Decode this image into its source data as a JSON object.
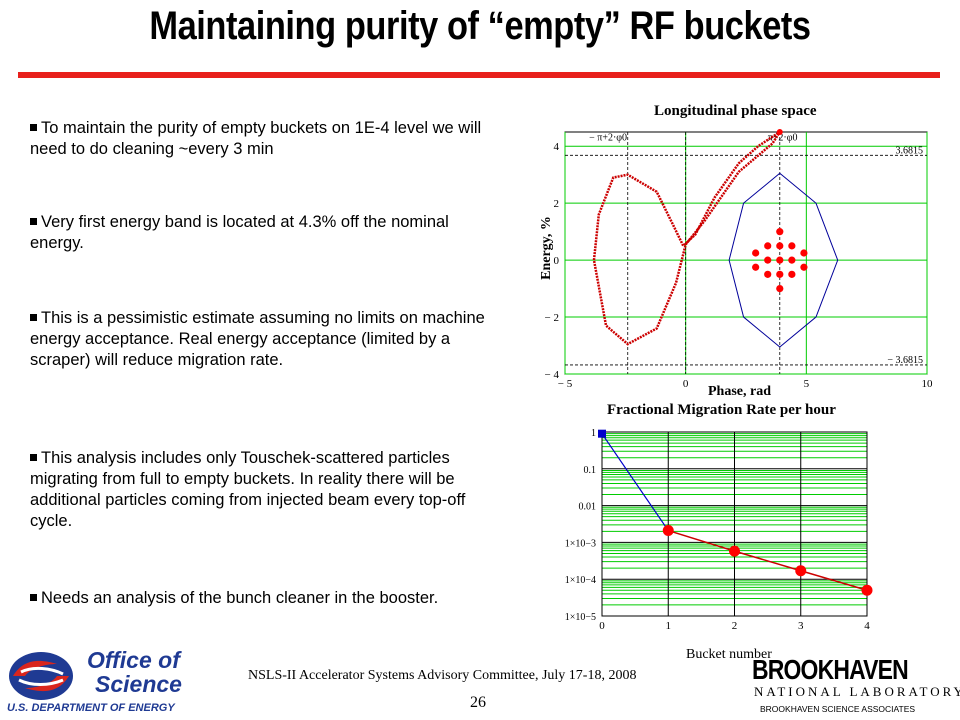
{
  "slide": {
    "title": "Maintaining purity of “empty” RF buckets",
    "bullets": [
      "To maintain the purity of empty buckets on 1E-4 level we will need to do cleaning ~every 3 min",
      "Very first energy band is located at 4.3% off the nominal energy.",
      "This is a pessimistic estimate assuming no limits on machine energy acceptance. Real energy acceptance (limited by a scraper) will reduce migration rate.",
      "This analysis includes only Touschek-scattered particles migrating from full to empty buckets. In reality there will be additional particles coming from injected beam every top-off cycle.",
      "Needs an analysis of the bunch cleaner in the booster."
    ],
    "footer_text": "NSLS-II Accelerator Systems Advisory Committee,  July 17-18, 2008",
    "page_number": "26",
    "logo_left": {
      "line1": "Office of",
      "line2": "Science",
      "line3": "U.S. DEPARTMENT OF ENERGY"
    },
    "logo_right": {
      "line1": "BROOKHAVEN",
      "line2": "NATIONAL LABORATORY",
      "line3": "BROOKHAVEN SCIENCE ASSOCIATES"
    }
  },
  "colors": {
    "title_rule": "#e8201c",
    "grid": "#00cc00",
    "separatrix": "#cc0000",
    "bucket": "#00009a",
    "migration_line": "#cc0000",
    "first_point": "#0000cc",
    "logo_blue": "#1f3a93",
    "logo_red": "#d9251d"
  },
  "chart_data": [
    {
      "type": "scatter",
      "title": "Longitudinal phase space",
      "xlabel": "Phase, rad",
      "ylabel": "Energy, %",
      "xlim": [
        -5,
        10
      ],
      "ylim": [
        -4,
        4.5
      ],
      "x_ticks": [
        "-5",
        "0",
        "5",
        "10"
      ],
      "y_ticks": [
        "-4",
        "-2",
        "0",
        "2",
        "4"
      ],
      "grid": true,
      "annotations": [
        "− π+2·φ0",
        "π+2·φ0",
        "3.6815",
        "− 3.6815"
      ],
      "reference_lines": {
        "phase": [
          -2.4,
          0,
          3.9
        ],
        "energy": [
          3.6815,
          -3.6815
        ]
      },
      "series": [
        {
          "points": [
            [
              -3.8,
              0
            ],
            [
              -3.6,
              1.6
            ],
            [
              -3,
              2.9
            ],
            [
              -2.4,
              3.0
            ],
            [
              -1.2,
              2.4
            ],
            [
              -0.5,
              1.2
            ],
            [
              -0.1,
              0.5
            ],
            [
              0.4,
              0.9
            ],
            [
              1.2,
              2.2
            ],
            [
              2.2,
              3.4
            ],
            [
              3,
              4.0
            ],
            [
              3.9,
              4.5
            ],
            [
              3.6,
              4.1
            ],
            [
              2.2,
              3.1
            ],
            [
              0.8,
              1.4
            ],
            [
              0.0,
              0.55
            ],
            [
              -0.4,
              -0.8
            ],
            [
              -1.2,
              -2.4
            ],
            [
              -2.4,
              -2.95
            ],
            [
              -3.3,
              -2.3
            ],
            [
              -3.8,
              0
            ]
          ]
        },
        {
          "points": [
            [
              1.8,
              0
            ],
            [
              2.4,
              -2
            ],
            [
              3.9,
              -3.05
            ],
            [
              5.4,
              -2
            ],
            [
              6.3,
              0
            ],
            [
              5.4,
              2
            ],
            [
              3.9,
              3.05
            ],
            [
              2.4,
              2
            ],
            [
              1.8,
              0
            ]
          ]
        },
        {
          "points": [
            [
              3.4,
              0.5
            ],
            [
              3.9,
              0.5
            ],
            [
              4.4,
              0.5
            ],
            [
              3.4,
              0
            ],
            [
              3.9,
              0
            ],
            [
              4.4,
              0
            ],
            [
              3.4,
              -0.5
            ],
            [
              3.9,
              -0.5
            ],
            [
              4.4,
              -0.5
            ],
            [
              3.9,
              1.0
            ],
            [
              3.9,
              -1.0
            ],
            [
              2.9,
              0.25
            ],
            [
              4.9,
              0.25
            ],
            [
              2.9,
              -0.25
            ],
            [
              4.9,
              -0.25
            ]
          ]
        }
      ]
    },
    {
      "type": "line",
      "title": "Fractional Migration Rate per hour",
      "xlabel": "Bucket number",
      "ylabel": "",
      "scale": "log",
      "x": [
        0,
        1,
        2,
        3,
        4
      ],
      "xlim": [
        0,
        4
      ],
      "ylim": [
        1e-05,
        1
      ],
      "x_ticks": [
        "0",
        "1",
        "2",
        "3",
        "4"
      ],
      "y_ticks": [
        "1",
        "0.1",
        "0.01",
        "1×10−3",
        "1×10−4",
        "1×10−5"
      ],
      "grid": true,
      "series": [
        {
          "values": [
            0.9,
            0.0021,
            0.00058,
            0.00017,
            5e-05
          ]
        }
      ]
    }
  ]
}
